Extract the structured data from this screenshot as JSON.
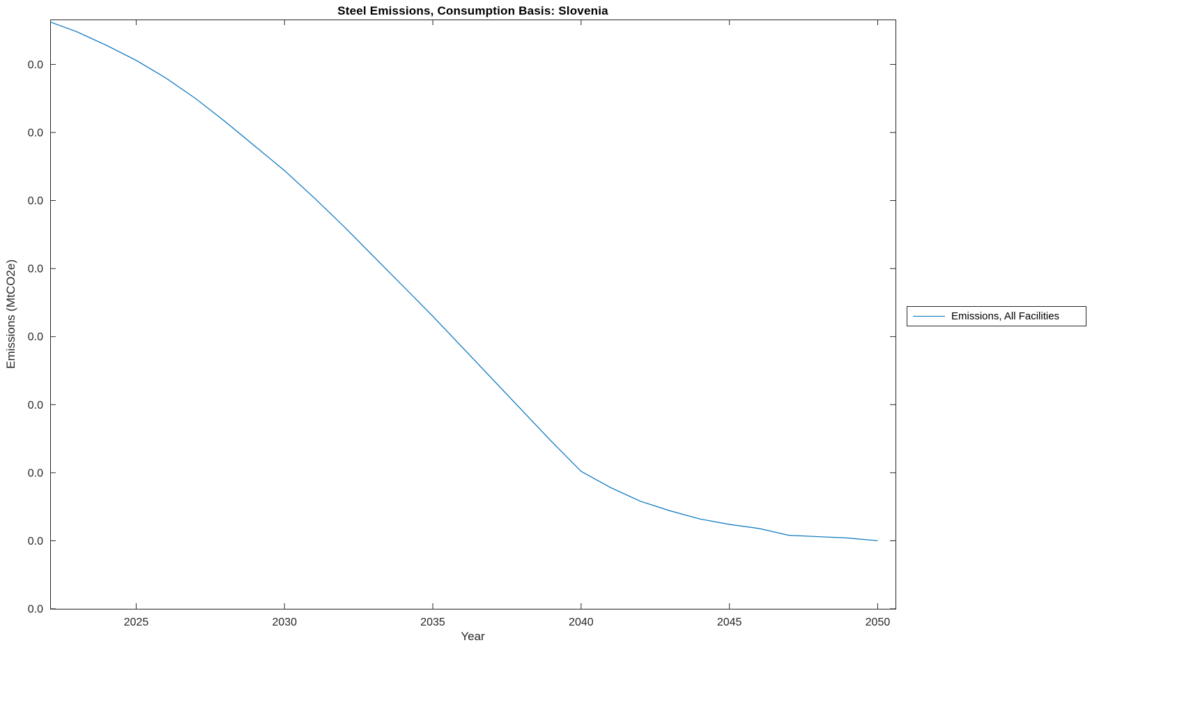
{
  "chart_data": {
    "type": "line",
    "title": "Steel Emissions, Consumption Basis: Slovenia",
    "xlabel": "Year",
    "ylabel": "Emissions (MtCO2e)",
    "xlim": [
      2022.1,
      2050.6
    ],
    "ylim": [
      0,
      0.0433
    ],
    "xticks": [
      2025,
      2030,
      2035,
      2040,
      2045,
      2050
    ],
    "xtick_labels": [
      "2025",
      "2030",
      "2035",
      "2040",
      "2045",
      "2050"
    ],
    "yticks": [
      0,
      0.005,
      0.01,
      0.015,
      0.02,
      0.025,
      0.03,
      0.035,
      0.04
    ],
    "ytick_labels": [
      "0.0",
      "0.0",
      "0.0",
      "0.0",
      "0.0",
      "0.0",
      "0.0",
      "0.0",
      "0.0"
    ],
    "grid": false,
    "box": true,
    "tick_direction": "in",
    "line_color": "#0072BD",
    "axis_color": "#262626",
    "legend": {
      "position": "right-outside",
      "entries": [
        "Emissions, All Facilities"
      ]
    },
    "series": [
      {
        "name": "Emissions, All Facilities",
        "x": [
          2022,
          2023,
          2024,
          2025,
          2026,
          2027,
          2028,
          2029,
          2030,
          2031,
          2032,
          2033,
          2034,
          2035,
          2036,
          2037,
          2038,
          2039,
          2040,
          2041,
          2042,
          2043,
          2044,
          2045,
          2046,
          2047,
          2048,
          2049,
          2050
        ],
        "y": [
          0.0432,
          0.0424,
          0.0414,
          0.0403,
          0.039,
          0.0375,
          0.0358,
          0.034,
          0.0322,
          0.0302,
          0.0281,
          0.0259,
          0.0237,
          0.0215,
          0.0192,
          0.0169,
          0.0146,
          0.0123,
          0.0101,
          0.0089,
          0.0079,
          0.0072,
          0.0066,
          0.0062,
          0.0059,
          0.0054,
          0.0053,
          0.0052,
          0.005
        ]
      }
    ]
  }
}
